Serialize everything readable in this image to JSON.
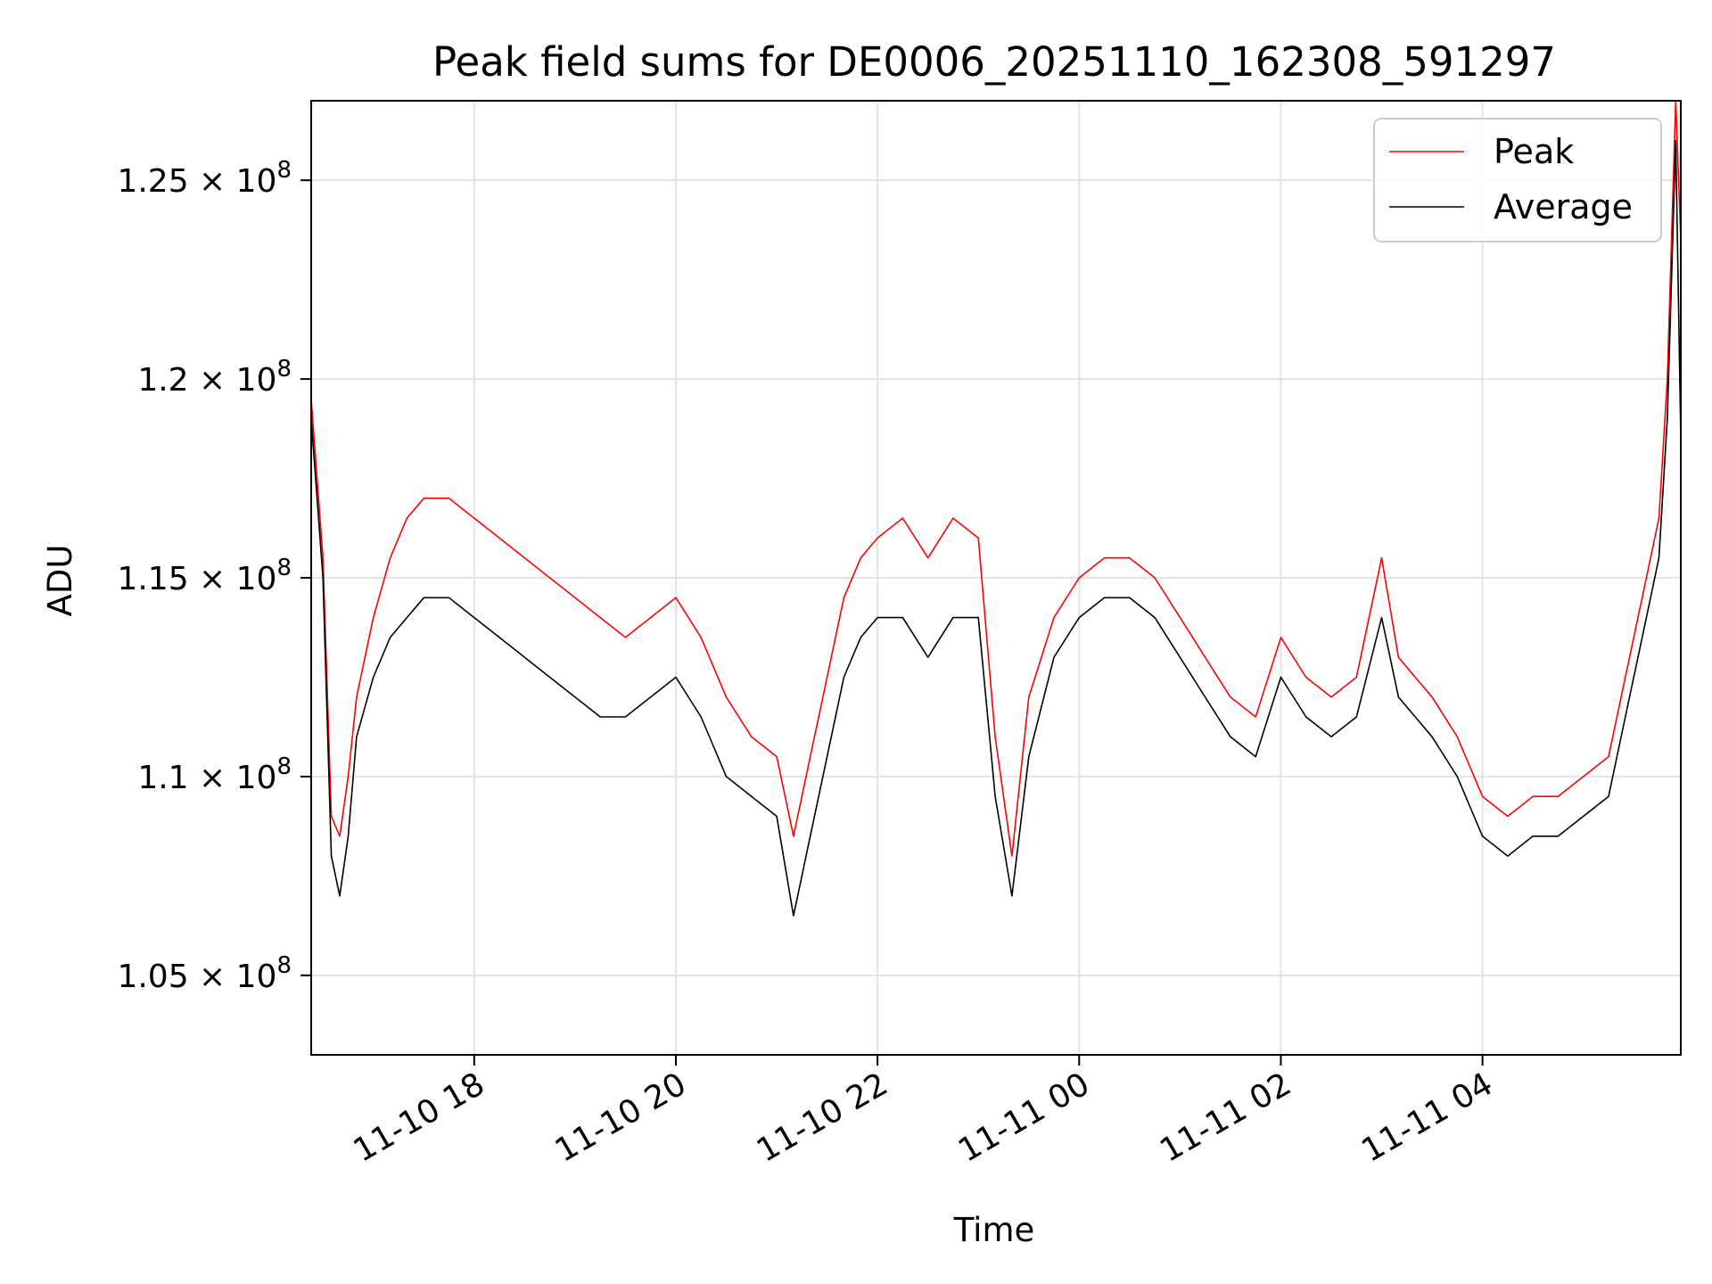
{
  "chart_data": {
    "type": "line",
    "title": "Peak field sums for DE0006_20251110_162308_591297",
    "xlabel": "Time",
    "ylabel": "ADU",
    "x_type": "datetime",
    "x_range": [
      "2025-11-10 16:23",
      "2025-11-11 05:58"
    ],
    "xlim": [
      "2025-11-10 16:23",
      "2025-11-11 05:58"
    ],
    "ylim": [
      103000000,
      127000000
    ],
    "grid": true,
    "legend_position": "top-right",
    "x_ticks": [
      {
        "value": "2025-11-10 18:00",
        "label": "11-10 18"
      },
      {
        "value": "2025-11-10 20:00",
        "label": "11-10 20"
      },
      {
        "value": "2025-11-10 22:00",
        "label": "11-10 22"
      },
      {
        "value": "2025-11-11 00:00",
        "label": "11-11 00"
      },
      {
        "value": "2025-11-11 02:00",
        "label": "11-11 02"
      },
      {
        "value": "2025-11-11 04:00",
        "label": "11-11 04"
      }
    ],
    "y_ticks": [
      {
        "value": 105000000,
        "mantissa": "1.05",
        "exponent": "8"
      },
      {
        "value": 110000000,
        "mantissa": "1.1",
        "exponent": "8"
      },
      {
        "value": 115000000,
        "mantissa": "1.15",
        "exponent": "8"
      },
      {
        "value": 120000000,
        "mantissa": "1.2",
        "exponent": "8"
      },
      {
        "value": 125000000,
        "mantissa": "1.25",
        "exponent": "8"
      }
    ],
    "times_sign": "×",
    "base": "10",
    "series": [
      {
        "name": "Peak",
        "color": "#ff0000",
        "x": [
          "2025-11-10 16:23",
          "2025-11-10 16:30",
          "2025-11-10 16:35",
          "2025-11-10 16:40",
          "2025-11-10 16:45",
          "2025-11-10 16:50",
          "2025-11-10 17:00",
          "2025-11-10 17:10",
          "2025-11-10 17:20",
          "2025-11-10 17:30",
          "2025-11-10 17:45",
          "2025-11-10 18:00",
          "2025-11-10 18:15",
          "2025-11-10 18:30",
          "2025-11-10 18:45",
          "2025-11-10 19:00",
          "2025-11-10 19:15",
          "2025-11-10 19:30",
          "2025-11-10 19:45",
          "2025-11-10 20:00",
          "2025-11-10 20:15",
          "2025-11-10 20:30",
          "2025-11-10 20:45",
          "2025-11-10 21:00",
          "2025-11-10 21:10",
          "2025-11-10 21:20",
          "2025-11-10 21:30",
          "2025-11-10 21:40",
          "2025-11-10 21:50",
          "2025-11-10 22:00",
          "2025-11-10 22:15",
          "2025-11-10 22:30",
          "2025-11-10 22:45",
          "2025-11-10 23:00",
          "2025-11-10 23:10",
          "2025-11-10 23:20",
          "2025-11-10 23:30",
          "2025-11-10 23:45",
          "2025-11-11 00:00",
          "2025-11-11 00:15",
          "2025-11-11 00:30",
          "2025-11-11 00:45",
          "2025-11-11 01:00",
          "2025-11-11 01:15",
          "2025-11-11 01:30",
          "2025-11-11 01:45",
          "2025-11-11 02:00",
          "2025-11-11 02:15",
          "2025-11-11 02:30",
          "2025-11-11 02:45",
          "2025-11-11 03:00",
          "2025-11-11 03:10",
          "2025-11-11 03:20",
          "2025-11-11 03:30",
          "2025-11-11 03:45",
          "2025-11-11 04:00",
          "2025-11-11 04:15",
          "2025-11-11 04:30",
          "2025-11-11 04:45",
          "2025-11-11 05:00",
          "2025-11-11 05:15",
          "2025-11-11 05:25",
          "2025-11-11 05:35",
          "2025-11-11 05:45",
          "2025-11-11 05:50",
          "2025-11-11 05:55",
          "2025-11-11 05:58"
        ],
        "values": [
          119500000,
          115500000,
          109000000,
          108500000,
          110000000,
          112000000,
          114000000,
          115500000,
          116500000,
          117000000,
          117000000,
          116500000,
          116000000,
          115500000,
          115000000,
          114500000,
          114000000,
          113500000,
          114000000,
          114500000,
          113500000,
          112000000,
          111000000,
          110500000,
          108500000,
          110500000,
          112500000,
          114500000,
          115500000,
          116000000,
          116500000,
          115500000,
          116500000,
          116000000,
          111000000,
          108000000,
          112000000,
          114000000,
          115000000,
          115500000,
          115500000,
          115000000,
          114000000,
          113000000,
          112000000,
          111500000,
          113500000,
          112500000,
          112000000,
          112500000,
          115500000,
          113000000,
          112500000,
          112000000,
          111000000,
          109500000,
          109000000,
          109500000,
          109500000,
          110000000,
          110500000,
          112500000,
          114500000,
          116500000,
          120000000,
          127000000,
          123500000
        ]
      },
      {
        "name": "Average",
        "color": "#000000",
        "x": [
          "2025-11-10 16:23",
          "2025-11-10 16:30",
          "2025-11-10 16:35",
          "2025-11-10 16:40",
          "2025-11-10 16:45",
          "2025-11-10 16:50",
          "2025-11-10 17:00",
          "2025-11-10 17:10",
          "2025-11-10 17:20",
          "2025-11-10 17:30",
          "2025-11-10 17:45",
          "2025-11-10 18:00",
          "2025-11-10 18:15",
          "2025-11-10 18:30",
          "2025-11-10 18:45",
          "2025-11-10 19:00",
          "2025-11-10 19:15",
          "2025-11-10 19:30",
          "2025-11-10 19:45",
          "2025-11-10 20:00",
          "2025-11-10 20:15",
          "2025-11-10 20:30",
          "2025-11-10 20:45",
          "2025-11-10 21:00",
          "2025-11-10 21:10",
          "2025-11-10 21:20",
          "2025-11-10 21:30",
          "2025-11-10 21:40",
          "2025-11-10 21:50",
          "2025-11-10 22:00",
          "2025-11-10 22:15",
          "2025-11-10 22:30",
          "2025-11-10 22:45",
          "2025-11-10 23:00",
          "2025-11-10 23:10",
          "2025-11-10 23:20",
          "2025-11-10 23:30",
          "2025-11-10 23:45",
          "2025-11-11 00:00",
          "2025-11-11 00:15",
          "2025-11-11 00:30",
          "2025-11-11 00:45",
          "2025-11-11 01:00",
          "2025-11-11 01:15",
          "2025-11-11 01:30",
          "2025-11-11 01:45",
          "2025-11-11 02:00",
          "2025-11-11 02:15",
          "2025-11-11 02:30",
          "2025-11-11 02:45",
          "2025-11-11 03:00",
          "2025-11-11 03:10",
          "2025-11-11 03:20",
          "2025-11-11 03:30",
          "2025-11-11 03:45",
          "2025-11-11 04:00",
          "2025-11-11 04:15",
          "2025-11-11 04:30",
          "2025-11-11 04:45",
          "2025-11-11 05:00",
          "2025-11-11 05:15",
          "2025-11-11 05:25",
          "2025-11-11 05:35",
          "2025-11-11 05:45",
          "2025-11-11 05:50",
          "2025-11-11 05:55",
          "2025-11-11 05:58"
        ],
        "values": [
          119000000,
          115000000,
          108000000,
          107000000,
          108500000,
          111000000,
          112500000,
          113500000,
          114000000,
          114500000,
          114500000,
          114000000,
          113500000,
          113000000,
          112500000,
          112000000,
          111500000,
          111500000,
          112000000,
          112500000,
          111500000,
          110000000,
          109500000,
          109000000,
          106500000,
          108500000,
          110500000,
          112500000,
          113500000,
          114000000,
          114000000,
          113000000,
          114000000,
          114000000,
          109500000,
          107000000,
          110500000,
          113000000,
          114000000,
          114500000,
          114500000,
          114000000,
          113000000,
          112000000,
          111000000,
          110500000,
          112500000,
          111500000,
          111000000,
          111500000,
          114000000,
          112000000,
          111500000,
          111000000,
          110000000,
          108500000,
          108000000,
          108500000,
          108500000,
          109000000,
          109500000,
          111500000,
          113500000,
          115500000,
          119000000,
          126000000,
          118500000
        ]
      }
    ]
  }
}
